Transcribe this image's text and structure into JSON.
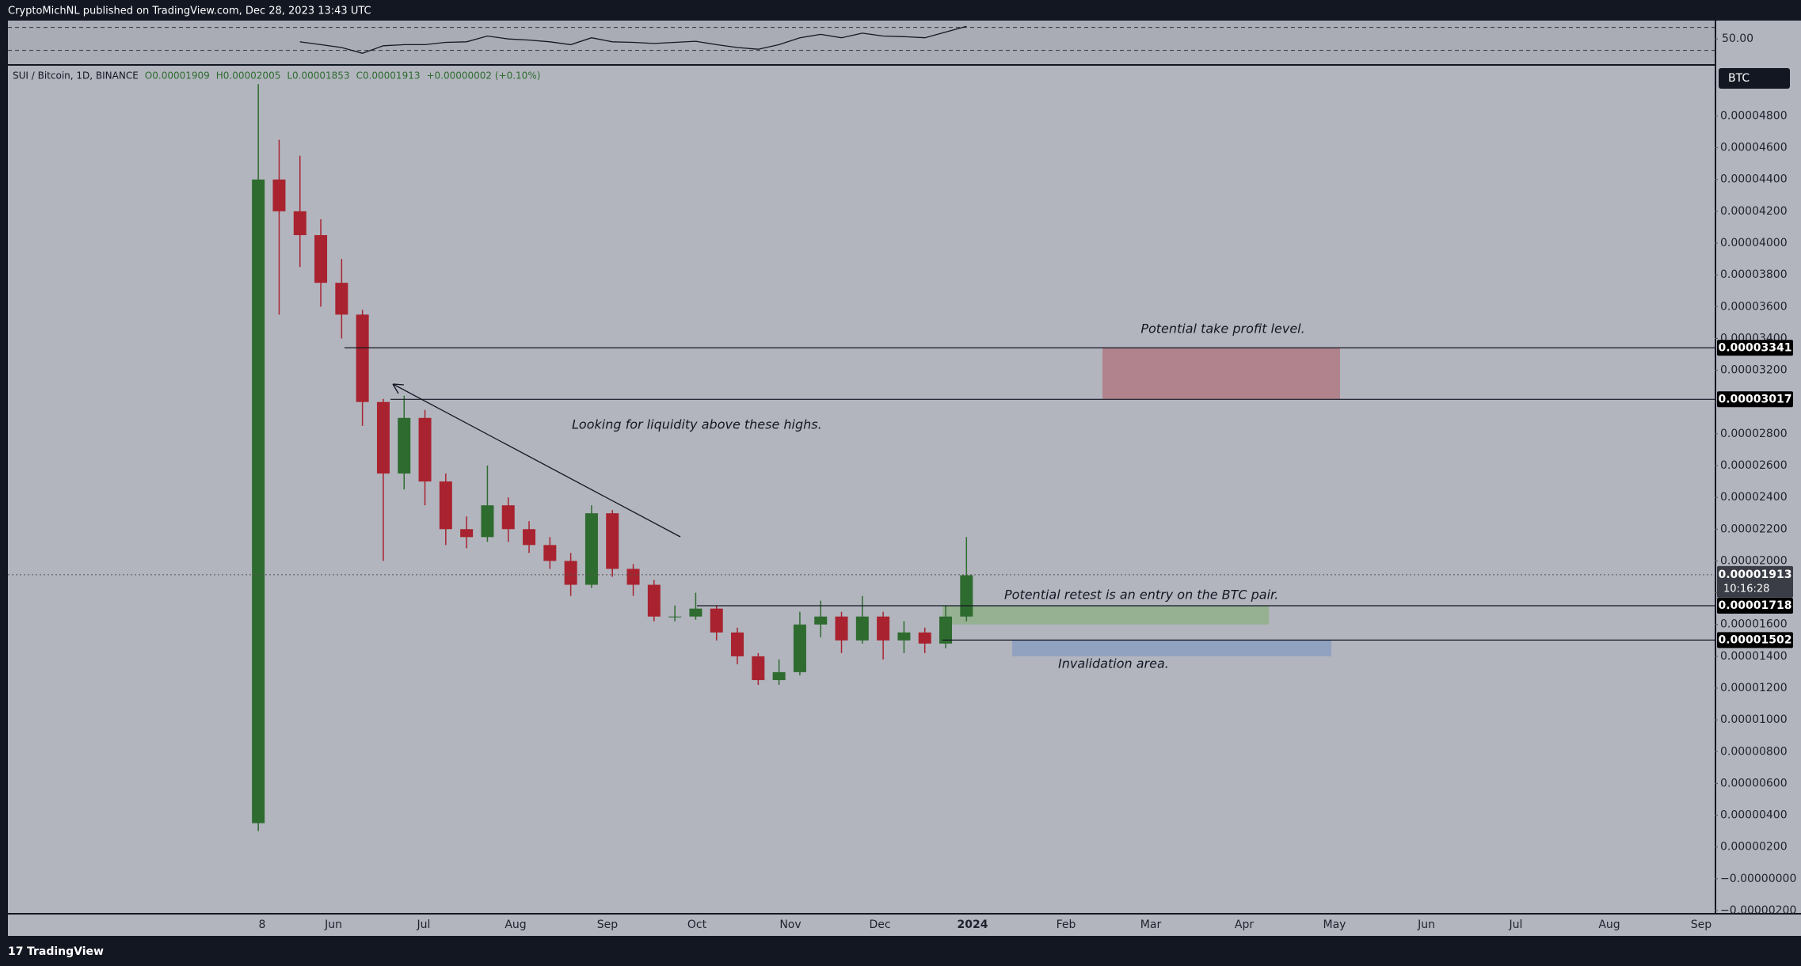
{
  "header": "CryptoMichNL published on TradingView.com, Dec 28, 2023 13:43 UTC",
  "footer": "TradingView",
  "chart_data": {
    "type": "candlestick",
    "legend": {
      "symbol": "SUI / Bitcoin, 1D, BINANCE",
      "ohlc": [
        "O0.00001909",
        "H0.00002005",
        "L0.00001853",
        "C0.00001913",
        "+0.00000002 (+0.10%)"
      ]
    },
    "currency": "BTC",
    "up_color": "#2e6b2f",
    "down_color": "#a8232f",
    "ylim": [
      -2.15e-06,
      5.116e-05
    ],
    "yticks": [
      {
        "value": 4.8e-05,
        "label": "0.00004800"
      },
      {
        "value": 4.6e-05,
        "label": "0.00004600"
      },
      {
        "value": 4.4e-05,
        "label": "0.00004400"
      },
      {
        "value": 4.2e-05,
        "label": "0.00004200"
      },
      {
        "value": 4e-05,
        "label": "0.00004000"
      },
      {
        "value": 3.8e-05,
        "label": "0.00003800"
      },
      {
        "value": 3.6e-05,
        "label": "0.00003600"
      },
      {
        "value": 3.4e-05,
        "label": "0.00003400"
      },
      {
        "value": 3.2e-05,
        "label": "0.00003200"
      },
      {
        "value": 3e-05,
        "label": "0.00003000"
      },
      {
        "value": 2.8e-05,
        "label": "0.00002800"
      },
      {
        "value": 2.6e-05,
        "label": "0.00002600"
      },
      {
        "value": 2.4e-05,
        "label": "0.00002400"
      },
      {
        "value": 2.2e-05,
        "label": "0.00002200"
      },
      {
        "value": 2e-05,
        "label": "0.00002000"
      },
      {
        "value": 1.8e-05,
        "label": "0.00001800"
      },
      {
        "value": 1.6e-05,
        "label": "0.00001600"
      },
      {
        "value": 1.4e-05,
        "label": "0.00001400"
      },
      {
        "value": 1.2e-05,
        "label": "0.00001200"
      },
      {
        "value": 1e-05,
        "label": "0.00001000"
      },
      {
        "value": 8e-06,
        "label": "0.00000800"
      },
      {
        "value": 6e-06,
        "label": "0.00000600"
      },
      {
        "value": 4e-06,
        "label": "0.00000400"
      },
      {
        "value": 2e-06,
        "label": "0.00000200"
      },
      {
        "value": 0,
        "label": "−0.00000000"
      },
      {
        "value": -2e-06,
        "label": "−0.00000200"
      }
    ],
    "xticks": [
      "8",
      "Jun",
      "Jul",
      "Aug",
      "Sep",
      "Oct",
      "Nov",
      "Dec",
      "2024",
      "Feb",
      "Mar",
      "Apr",
      "May",
      "Jun",
      "Jul",
      "Aug",
      "Sep"
    ],
    "candles": [
      {
        "o": 3.5e-06,
        "h": 5e-05,
        "l": 3e-06,
        "c": 4.4e-05
      },
      {
        "o": 4.4e-05,
        "h": 4.65e-05,
        "l": 3.55e-05,
        "c": 4.2e-05
      },
      {
        "o": 4.2e-05,
        "h": 4.55e-05,
        "l": 3.85e-05,
        "c": 4.05e-05
      },
      {
        "o": 4.05e-05,
        "h": 4.15e-05,
        "l": 3.6e-05,
        "c": 3.75e-05
      },
      {
        "o": 3.75e-05,
        "h": 3.9e-05,
        "l": 3.4e-05,
        "c": 3.55e-05
      },
      {
        "o": 3.55e-05,
        "h": 3.58e-05,
        "l": 2.85e-05,
        "c": 3e-05
      },
      {
        "o": 3e-05,
        "h": 3.02e-05,
        "l": 2e-05,
        "c": 2.55e-05
      },
      {
        "o": 2.55e-05,
        "h": 3.04e-05,
        "l": 2.45e-05,
        "c": 2.9e-05
      },
      {
        "o": 2.9e-05,
        "h": 2.95e-05,
        "l": 2.35e-05,
        "c": 2.5e-05
      },
      {
        "o": 2.5e-05,
        "h": 2.55e-05,
        "l": 2.1e-05,
        "c": 2.2e-05
      },
      {
        "o": 2.2e-05,
        "h": 2.28e-05,
        "l": 2.08e-05,
        "c": 2.15e-05
      },
      {
        "o": 2.15e-05,
        "h": 2.6e-05,
        "l": 2.12e-05,
        "c": 2.35e-05
      },
      {
        "o": 2.35e-05,
        "h": 2.4e-05,
        "l": 2.12e-05,
        "c": 2.2e-05
      },
      {
        "o": 2.2e-05,
        "h": 2.25e-05,
        "l": 2.05e-05,
        "c": 2.1e-05
      },
      {
        "o": 2.1e-05,
        "h": 2.15e-05,
        "l": 1.95e-05,
        "c": 2e-05
      },
      {
        "o": 2e-05,
        "h": 2.05e-05,
        "l": 1.78e-05,
        "c": 1.85e-05
      },
      {
        "o": 1.85e-05,
        "h": 2.35e-05,
        "l": 1.83e-05,
        "c": 2.3e-05
      },
      {
        "o": 2.3e-05,
        "h": 2.32e-05,
        "l": 1.9e-05,
        "c": 1.95e-05
      },
      {
        "o": 1.95e-05,
        "h": 1.98e-05,
        "l": 1.78e-05,
        "c": 1.85e-05
      },
      {
        "o": 1.85e-05,
        "h": 1.88e-05,
        "l": 1.62e-05,
        "c": 1.65e-05
      },
      {
        "o": 1.65e-05,
        "h": 1.72e-05,
        "l": 1.62e-05,
        "c": 1.65e-05
      },
      {
        "o": 1.65e-05,
        "h": 1.8e-05,
        "l": 1.63e-05,
        "c": 1.7e-05
      },
      {
        "o": 1.7e-05,
        "h": 1.72e-05,
        "l": 1.5e-05,
        "c": 1.55e-05
      },
      {
        "o": 1.55e-05,
        "h": 1.58e-05,
        "l": 1.35e-05,
        "c": 1.4e-05
      },
      {
        "o": 1.4e-05,
        "h": 1.42e-05,
        "l": 1.22e-05,
        "c": 1.25e-05
      },
      {
        "o": 1.25e-05,
        "h": 1.38e-05,
        "l": 1.22e-05,
        "c": 1.3e-05
      },
      {
        "o": 1.3e-05,
        "h": 1.68e-05,
        "l": 1.28e-05,
        "c": 1.6e-05
      },
      {
        "o": 1.6e-05,
        "h": 1.75e-05,
        "l": 1.52e-05,
        "c": 1.65e-05
      },
      {
        "o": 1.65e-05,
        "h": 1.68e-05,
        "l": 1.42e-05,
        "c": 1.5e-05
      },
      {
        "o": 1.5e-05,
        "h": 1.78e-05,
        "l": 1.48e-05,
        "c": 1.65e-05
      },
      {
        "o": 1.65e-05,
        "h": 1.68e-05,
        "l": 1.38e-05,
        "c": 1.5e-05
      },
      {
        "o": 1.5e-05,
        "h": 1.62e-05,
        "l": 1.42e-05,
        "c": 1.55e-05
      },
      {
        "o": 1.55e-05,
        "h": 1.58e-05,
        "l": 1.42e-05,
        "c": 1.48e-05
      },
      {
        "o": 1.48e-05,
        "h": 1.72e-05,
        "l": 1.45e-05,
        "c": 1.65e-05
      },
      {
        "o": 1.65e-05,
        "h": 2.15e-05,
        "l": 1.62e-05,
        "c": 1.91e-05
      }
    ],
    "last_price": {
      "value": 1.913e-05,
      "label": "0.00001913",
      "countdown": "10:16:28"
    },
    "levels": [
      {
        "value": 3.341e-05,
        "label": "0.00003341"
      },
      {
        "value": 3.017e-05,
        "label": "0.00003017"
      },
      {
        "value": 1.718e-05,
        "label": "0.00001718"
      },
      {
        "value": 1.502e-05,
        "label": "0.00001502"
      }
    ],
    "zones": [
      {
        "top": 3.341e-05,
        "bottom": 3.017e-05,
        "color": "#b07a85"
      },
      {
        "top": 1.718e-05,
        "bottom": 1.6e-05,
        "color": "#8fb08a"
      },
      {
        "top": 1.5e-05,
        "bottom": 1.4e-05,
        "color": "#8b9fc2"
      }
    ],
    "annotations": [
      "Potential take profit level.",
      "Looking for liquidity above these highs.",
      "Potential retest is an entry on the BTC pair.",
      "Invalidation area."
    ],
    "rsi": {
      "values": [
        null,
        null,
        45,
        40,
        35,
        25,
        38,
        40,
        40,
        44,
        45,
        55,
        50,
        48,
        45,
        40,
        52,
        45,
        44,
        42,
        44,
        46,
        40,
        35,
        32,
        40,
        52,
        58,
        52,
        60,
        55,
        54,
        52,
        62,
        72
      ],
      "ylim": [
        6,
        82
      ],
      "bands": [
        30,
        70
      ],
      "yticks": [
        {
          "value": 50,
          "label": "50.00"
        }
      ]
    }
  }
}
